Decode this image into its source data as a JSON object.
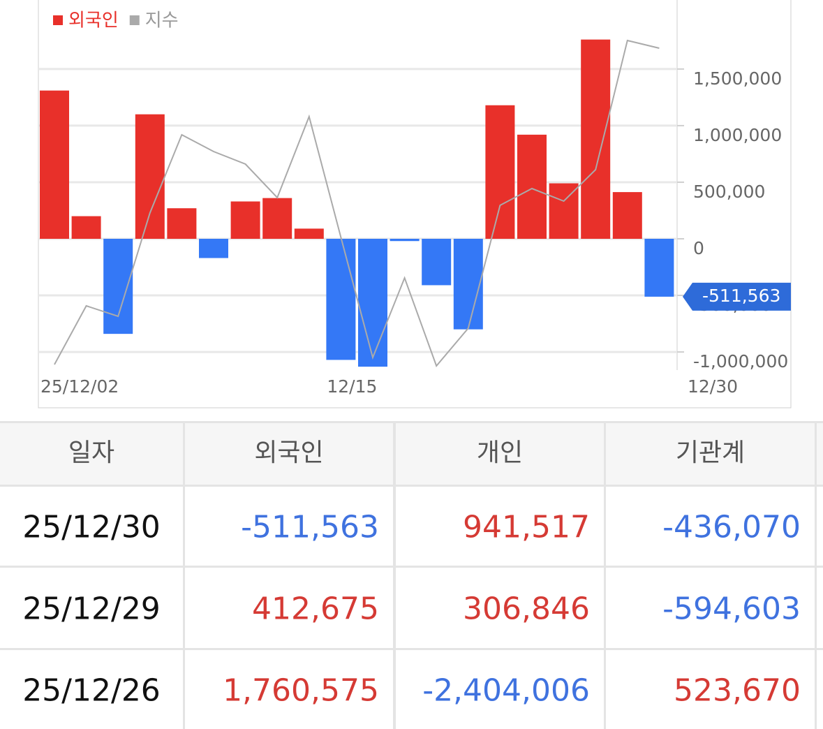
{
  "chart_data": {
    "type": "bar",
    "categories": [
      "25/12/02",
      null,
      null,
      null,
      null,
      null,
      null,
      null,
      null,
      "12/15",
      null,
      null,
      null,
      null,
      null,
      null,
      null,
      null,
      null,
      "12/30"
    ],
    "series": [
      {
        "name": "외국인",
        "color": "#e8302a",
        "negative_color": "#3478f6",
        "values": [
          1310000,
          200000,
          -840000,
          1100000,
          270000,
          -170000,
          330000,
          360000,
          90000,
          -1070000,
          -1130000,
          -20000,
          -410000,
          -800000,
          1180000,
          920000,
          490000,
          1760575,
          412675,
          -511563
        ],
        "value_labels": [
          null,
          null,
          null,
          null,
          null,
          null,
          null,
          null,
          null,
          null,
          null,
          null,
          null,
          null,
          null,
          null,
          null,
          null,
          null,
          "-511,563"
        ]
      },
      {
        "name": "지수",
        "color": "#aaaaaa",
        "type": "line",
        "axis": "y2",
        "values": [
          8,
          92,
          77,
          225,
          337,
          313,
          295,
          247,
          363,
          190,
          18,
          132,
          6,
          60,
          236,
          260,
          242,
          287,
          472,
          461
        ]
      }
    ],
    "ylim": [
      -1160000,
      2110000
    ],
    "yticks": [
      {
        "value": -1000000,
        "label": "-1,000,000"
      },
      {
        "value": -500000,
        "label": "-500,000"
      },
      0,
      {
        "value": 500000,
        "label": "500,000"
      },
      {
        "value": 1000000,
        "label": "1,000,000"
      },
      {
        "value": 1500000,
        "label": "1,500,000"
      }
    ],
    "y2lim": [
      0,
      530
    ],
    "grid": true,
    "legend": "top-left"
  },
  "table": {
    "header": [
      "일자",
      "외국인",
      "개인",
      "기관계"
    ],
    "rows": [
      [
        "25/12/30",
        "-511,563",
        "941,517",
        "-436,070"
      ],
      [
        "25/12/29",
        "412,675",
        "306,846",
        "-594,603"
      ],
      [
        "25/12/26",
        "1,760,575",
        "-2,404,006",
        "523,670"
      ]
    ]
  }
}
